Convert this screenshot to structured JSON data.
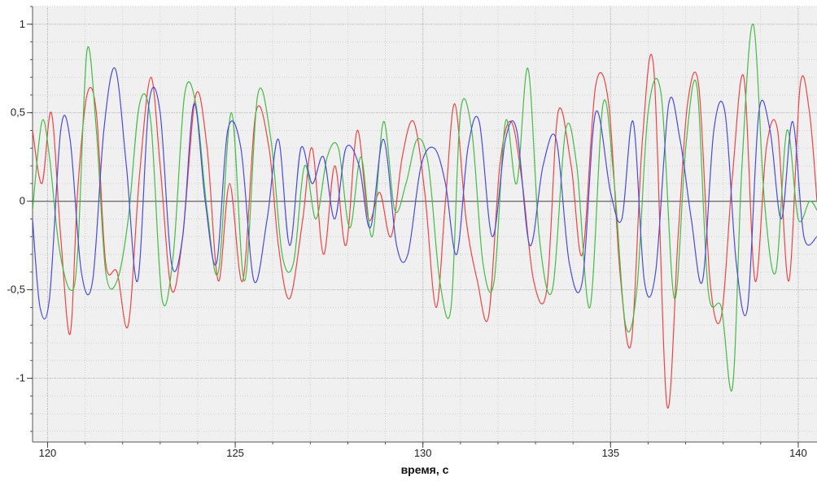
{
  "chart_data": {
    "type": "line",
    "title": "",
    "xlabel": "время, с",
    "ylabel": "",
    "xlim": [
      119.6,
      140.5
    ],
    "ylim": [
      -1.36,
      1.1
    ],
    "x_ticks": [
      120,
      125,
      130,
      135,
      140
    ],
    "x_tick_labels": [
      "120",
      "125",
      "130",
      "135",
      "140"
    ],
    "y_ticks": [
      1,
      0.5,
      0,
      -0.5,
      -1
    ],
    "y_tick_labels": [
      "1",
      "0,5",
      "0",
      "-0,5",
      "-1"
    ],
    "grid": true,
    "legend": "none",
    "series": [
      {
        "color": "#ee4444",
        "x": [
          119.6,
          119.85,
          120.1,
          120.35,
          120.6,
          120.8,
          121.05,
          121.3,
          121.55,
          121.85,
          122.15,
          122.45,
          122.75,
          123.0,
          123.3,
          123.6,
          123.95,
          124.25,
          124.55,
          124.85,
          125.2,
          125.55,
          125.9,
          126.15,
          126.45,
          126.8,
          127.05,
          127.35,
          127.65,
          127.95,
          128.25,
          128.55,
          128.85,
          129.15,
          129.45,
          129.75,
          130.05,
          130.35,
          130.6,
          130.85,
          131.15,
          131.45,
          131.75,
          132.05,
          132.35,
          132.65,
          132.95,
          133.3,
          133.6,
          133.95,
          134.25,
          134.6,
          134.95,
          135.25,
          135.55,
          135.85,
          136.15,
          136.5,
          136.8,
          137.05,
          137.35,
          137.65,
          137.95,
          138.25,
          138.55,
          138.85,
          139.15,
          139.45,
          139.75,
          140.05,
          140.3,
          140.5
        ],
        "y": [
          0.4,
          0.1,
          0.5,
          -0.2,
          -0.75,
          0.05,
          0.6,
          0.5,
          -0.35,
          -0.4,
          -0.7,
          0.15,
          0.7,
          0.2,
          -0.5,
          -0.2,
          0.6,
          0.3,
          -0.45,
          0.1,
          -0.45,
          0.5,
          0.3,
          -0.25,
          -0.55,
          -0.1,
          0.3,
          -0.3,
          0.2,
          -0.25,
          0.4,
          -0.1,
          0.05,
          -0.2,
          0.25,
          0.45,
          0.05,
          -0.6,
          0.0,
          0.55,
          -0.1,
          -0.45,
          -0.65,
          0.2,
          0.45,
          0.1,
          -0.45,
          -0.5,
          0.5,
          0.2,
          -0.3,
          0.65,
          0.55,
          -0.4,
          -0.8,
          0.35,
          0.75,
          -1.15,
          -0.2,
          0.55,
          0.65,
          -0.45,
          -0.65,
          0.15,
          0.7,
          -0.45,
          0.3,
          0.4,
          -0.45,
          0.65,
          0.5,
          0.0
        ]
      },
      {
        "color": "#44bb44",
        "x": [
          119.6,
          119.85,
          120.05,
          120.3,
          120.6,
          120.8,
          121.05,
          121.3,
          121.55,
          121.85,
          122.15,
          122.45,
          122.75,
          123.05,
          123.35,
          123.65,
          123.95,
          124.25,
          124.55,
          124.9,
          125.25,
          125.6,
          125.95,
          126.25,
          126.55,
          126.85,
          127.15,
          127.45,
          127.75,
          128.05,
          128.35,
          128.65,
          128.95,
          129.25,
          129.55,
          129.85,
          130.15,
          130.45,
          130.75,
          131.0,
          131.3,
          131.6,
          131.9,
          132.2,
          132.5,
          132.8,
          133.1,
          133.45,
          133.8,
          134.1,
          134.45,
          134.8,
          135.1,
          135.4,
          135.7,
          136.0,
          136.35,
          136.7,
          137.0,
          137.3,
          137.6,
          137.95,
          138.25,
          138.5,
          138.8,
          139.1,
          139.4,
          139.7,
          140.0,
          140.3,
          140.5
        ],
        "y": [
          -0.05,
          0.45,
          0.25,
          -0.25,
          -0.5,
          -0.3,
          0.85,
          0.4,
          -0.4,
          -0.45,
          -0.1,
          0.55,
          0.45,
          -0.55,
          -0.3,
          0.6,
          0.55,
          -0.05,
          -0.4,
          0.5,
          -0.45,
          0.6,
          0.35,
          -0.3,
          -0.35,
          0.2,
          -0.1,
          0.25,
          0.3,
          -0.15,
          0.25,
          -0.2,
          0.45,
          -0.05,
          0.1,
          0.35,
          0.2,
          -0.45,
          -0.6,
          0.5,
          0.4,
          -0.35,
          -0.45,
          0.45,
          0.1,
          0.75,
          -0.2,
          -0.5,
          0.4,
          0.2,
          -0.6,
          0.55,
          0.1,
          -0.7,
          -0.5,
          0.5,
          0.6,
          -0.55,
          0.3,
          0.65,
          -0.5,
          -0.6,
          -1.05,
          0.2,
          1.0,
          0.0,
          -0.4,
          0.4,
          -0.1,
          0.0,
          -0.05
        ]
      },
      {
        "color": "#4a4adc",
        "x": [
          119.6,
          119.8,
          120.05,
          120.35,
          120.6,
          120.9,
          121.2,
          121.5,
          121.8,
          122.1,
          122.4,
          122.7,
          123.0,
          123.3,
          123.6,
          123.9,
          124.2,
          124.5,
          124.8,
          125.15,
          125.5,
          125.85,
          126.15,
          126.45,
          126.75,
          127.05,
          127.35,
          127.65,
          127.95,
          128.3,
          128.6,
          128.95,
          129.3,
          129.6,
          129.95,
          130.3,
          130.6,
          130.9,
          131.2,
          131.5,
          131.85,
          132.2,
          132.5,
          132.85,
          133.2,
          133.55,
          133.9,
          134.25,
          134.6,
          135.0,
          135.3,
          135.6,
          135.9,
          136.2,
          136.55,
          136.85,
          137.15,
          137.45,
          137.75,
          138.05,
          138.35,
          138.65,
          138.95,
          139.25,
          139.55,
          139.85,
          140.15,
          140.5
        ],
        "y": [
          -0.1,
          -0.6,
          -0.55,
          0.4,
          0.35,
          -0.4,
          -0.45,
          0.4,
          0.75,
          0.2,
          -0.45,
          0.55,
          0.5,
          -0.35,
          -0.2,
          0.55,
          0.0,
          -0.35,
          0.4,
          0.3,
          -0.45,
          -0.1,
          0.35,
          -0.25,
          0.3,
          0.1,
          0.25,
          -0.1,
          0.3,
          0.2,
          -0.15,
          0.35,
          -0.25,
          -0.3,
          0.2,
          0.3,
          0.1,
          -0.3,
          0.3,
          0.45,
          -0.2,
          0.35,
          0.4,
          -0.25,
          0.2,
          0.35,
          -0.35,
          -0.45,
          0.5,
          0.05,
          -0.1,
          0.45,
          -0.45,
          -0.4,
          0.55,
          0.35,
          -0.1,
          -0.45,
          0.4,
          0.5,
          -0.35,
          -0.6,
          0.5,
          0.4,
          -0.1,
          0.45,
          -0.2,
          -0.2
        ]
      }
    ]
  }
}
